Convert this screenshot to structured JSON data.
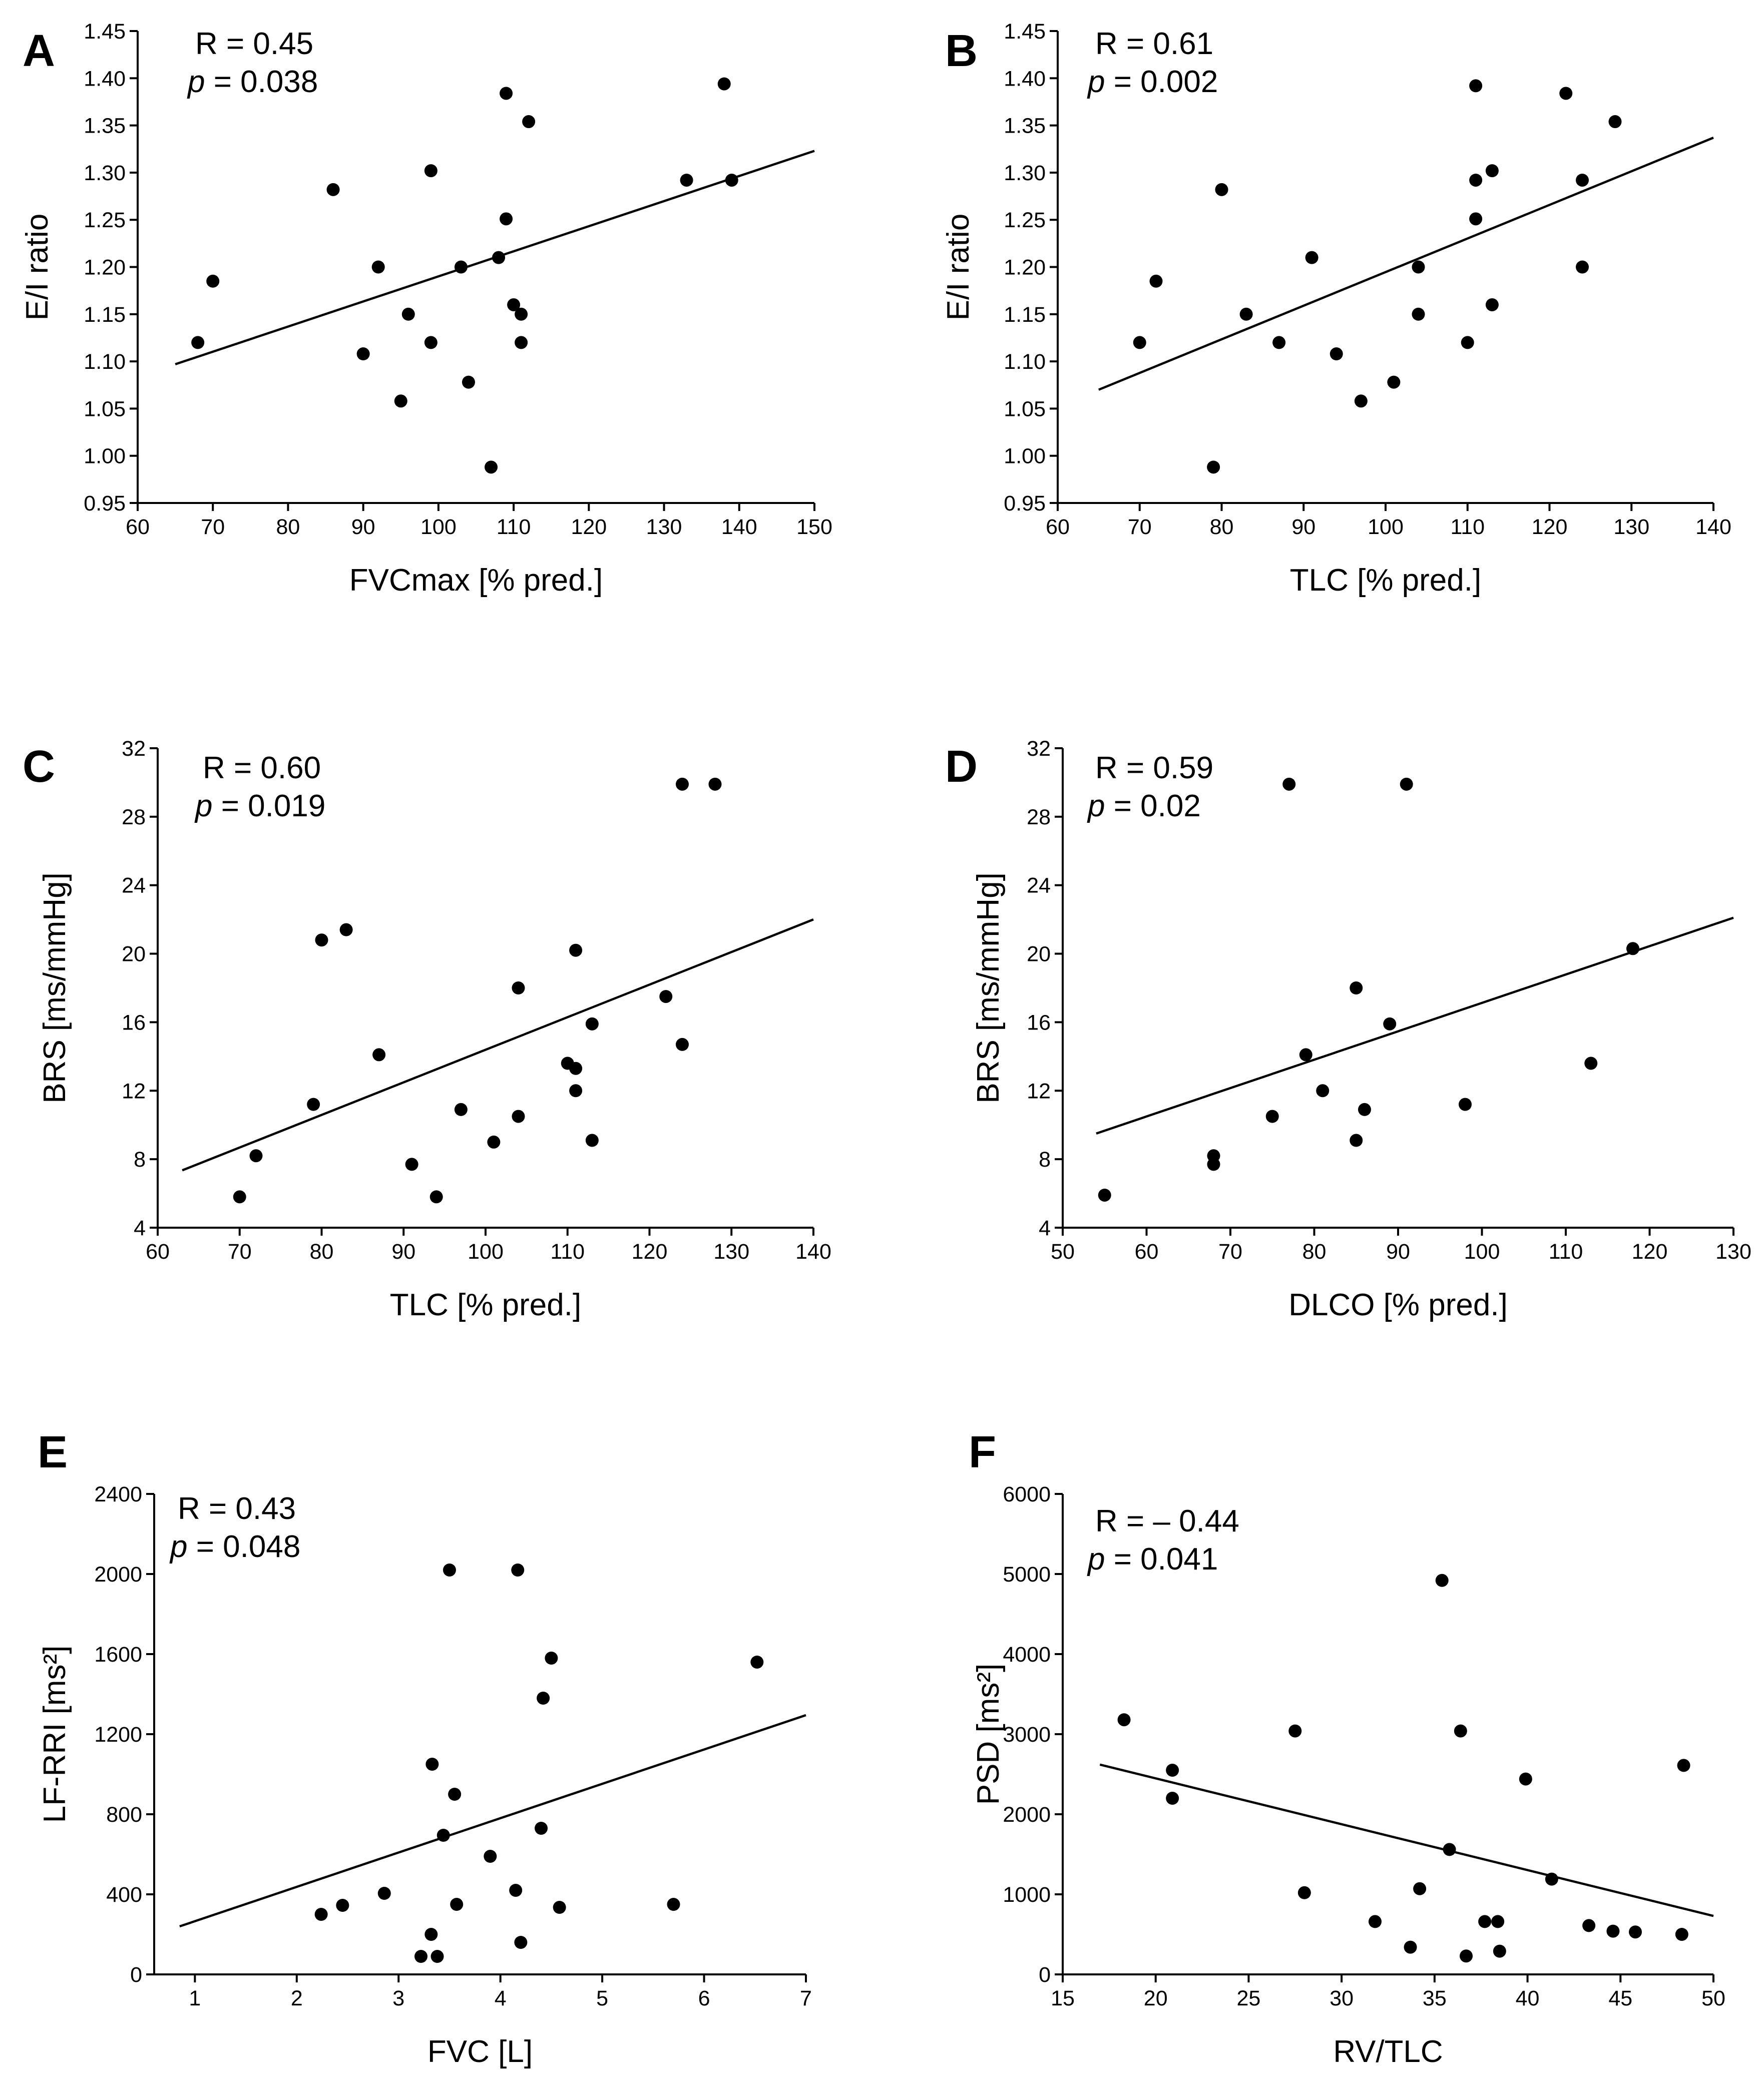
{
  "chart_data": [
    {
      "type": "scatter",
      "panel_label": "A",
      "xlabel": "FVCmax [% pred.]",
      "ylabel": "E/I ratio",
      "xlim": [
        60,
        150
      ],
      "ylim": [
        0.95,
        1.45
      ],
      "xticks": [
        60,
        70,
        80,
        90,
        100,
        110,
        120,
        130,
        140,
        150
      ],
      "yticks": [
        0.95,
        1.0,
        1.05,
        1.1,
        1.15,
        1.2,
        1.25,
        1.3,
        1.35,
        1.4,
        1.45
      ],
      "ytick_decimals": 2,
      "annotation": {
        "r_text": "R = 0.45",
        "p_letter": "p",
        "p_value": " = 0.038"
      },
      "fit_line": {
        "x": [
          65,
          150
        ],
        "y": [
          1.097,
          1.323
        ]
      },
      "points": [
        {
          "x": 68,
          "y": 1.12
        },
        {
          "x": 70,
          "y": 1.185
        },
        {
          "x": 86,
          "y": 1.282
        },
        {
          "x": 90,
          "y": 1.108
        },
        {
          "x": 92,
          "y": 1.2
        },
        {
          "x": 95,
          "y": 1.058
        },
        {
          "x": 96,
          "y": 1.15
        },
        {
          "x": 99,
          "y": 1.302
        },
        {
          "x": 99,
          "y": 1.12
        },
        {
          "x": 103,
          "y": 1.2
        },
        {
          "x": 104,
          "y": 1.078
        },
        {
          "x": 107,
          "y": 0.988
        },
        {
          "x": 108,
          "y": 1.21
        },
        {
          "x": 109,
          "y": 1.384
        },
        {
          "x": 109,
          "y": 1.251
        },
        {
          "x": 110,
          "y": 1.16
        },
        {
          "x": 111,
          "y": 1.15
        },
        {
          "x": 111,
          "y": 1.12
        },
        {
          "x": 112,
          "y": 1.354
        },
        {
          "x": 133,
          "y": 1.292
        },
        {
          "x": 138,
          "y": 1.394
        },
        {
          "x": 139,
          "y": 1.292
        }
      ]
    },
    {
      "type": "scatter",
      "panel_label": "B",
      "xlabel": "TLC [% pred.]",
      "ylabel": "E/I ratio",
      "xlim": [
        60,
        140
      ],
      "ylim": [
        0.95,
        1.45
      ],
      "xticks": [
        60,
        70,
        80,
        90,
        100,
        110,
        120,
        130,
        140
      ],
      "yticks": [
        0.95,
        1.0,
        1.05,
        1.1,
        1.15,
        1.2,
        1.25,
        1.3,
        1.35,
        1.4,
        1.45
      ],
      "ytick_decimals": 2,
      "annotation": {
        "r_text": "R = 0.61",
        "p_letter": "p",
        "p_value": " = 0.002"
      },
      "fit_line": {
        "x": [
          65,
          140
        ],
        "y": [
          1.07,
          1.337
        ]
      },
      "points": [
        {
          "x": 70,
          "y": 1.12
        },
        {
          "x": 72,
          "y": 1.185
        },
        {
          "x": 79,
          "y": 0.988
        },
        {
          "x": 80,
          "y": 1.282
        },
        {
          "x": 83,
          "y": 1.15
        },
        {
          "x": 87,
          "y": 1.12
        },
        {
          "x": 91,
          "y": 1.21
        },
        {
          "x": 94,
          "y": 1.108
        },
        {
          "x": 97,
          "y": 1.058
        },
        {
          "x": 101,
          "y": 1.078
        },
        {
          "x": 104,
          "y": 1.2
        },
        {
          "x": 104,
          "y": 1.15
        },
        {
          "x": 110,
          "y": 1.12
        },
        {
          "x": 111,
          "y": 1.392
        },
        {
          "x": 111,
          "y": 1.292
        },
        {
          "x": 111,
          "y": 1.251
        },
        {
          "x": 113,
          "y": 1.302
        },
        {
          "x": 113,
          "y": 1.16
        },
        {
          "x": 122,
          "y": 1.384
        },
        {
          "x": 124,
          "y": 1.292
        },
        {
          "x": 124,
          "y": 1.2
        },
        {
          "x": 128,
          "y": 1.354
        }
      ]
    },
    {
      "type": "scatter",
      "panel_label": "C",
      "xlabel": "TLC [% pred.]",
      "ylabel": "BRS [ms/mmHg]",
      "xlim": [
        60,
        140
      ],
      "ylim": [
        4,
        32
      ],
      "xticks": [
        60,
        70,
        80,
        90,
        100,
        110,
        120,
        130,
        140
      ],
      "yticks": [
        4,
        8,
        12,
        16,
        20,
        24,
        28,
        32
      ],
      "ytick_decimals": 0,
      "annotation": {
        "r_text": "R = 0.60",
        "p_letter": "p",
        "p_value": " = 0.019"
      },
      "fit_line": {
        "x": [
          63,
          140
        ],
        "y": [
          7.35,
          22.0
        ]
      },
      "points": [
        {
          "x": 70,
          "y": 5.8
        },
        {
          "x": 72,
          "y": 8.2
        },
        {
          "x": 79,
          "y": 11.2
        },
        {
          "x": 80,
          "y": 20.8
        },
        {
          "x": 83,
          "y": 21.4
        },
        {
          "x": 87,
          "y": 14.1
        },
        {
          "x": 91,
          "y": 7.7
        },
        {
          "x": 94,
          "y": 5.8
        },
        {
          "x": 97,
          "y": 10.9
        },
        {
          "x": 101,
          "y": 9.0
        },
        {
          "x": 104,
          "y": 18.0
        },
        {
          "x": 104,
          "y": 10.5
        },
        {
          "x": 110,
          "y": 13.6
        },
        {
          "x": 111,
          "y": 20.2
        },
        {
          "x": 111,
          "y": 13.3
        },
        {
          "x": 111,
          "y": 12.0
        },
        {
          "x": 113,
          "y": 15.9
        },
        {
          "x": 113,
          "y": 9.1
        },
        {
          "x": 122,
          "y": 17.5
        },
        {
          "x": 124,
          "y": 29.9
        },
        {
          "x": 124,
          "y": 14.7
        },
        {
          "x": 128,
          "y": 29.9
        }
      ]
    },
    {
      "type": "scatter",
      "panel_label": "D",
      "xlabel": "DLCO [% pred.]",
      "ylabel": "BRS [ms/mmHg]",
      "xlim": [
        50,
        130
      ],
      "ylim": [
        4,
        32
      ],
      "xticks": [
        50,
        60,
        70,
        80,
        90,
        100,
        110,
        120,
        130
      ],
      "yticks": [
        4,
        8,
        12,
        16,
        20,
        24,
        28,
        32
      ],
      "ytick_decimals": 0,
      "annotation": {
        "r_text": "R = 0.59",
        "p_letter": "p",
        "p_value": " = 0.02"
      },
      "fit_line": {
        "x": [
          54,
          130
        ],
        "y": [
          9.5,
          22.1
        ]
      },
      "points": [
        {
          "x": 55,
          "y": 5.9
        },
        {
          "x": 68,
          "y": 8.2
        },
        {
          "x": 68,
          "y": 7.7
        },
        {
          "x": 75,
          "y": 10.5
        },
        {
          "x": 77,
          "y": 29.9
        },
        {
          "x": 79,
          "y": 14.1
        },
        {
          "x": 81,
          "y": 12.0
        },
        {
          "x": 85,
          "y": 18.0
        },
        {
          "x": 85,
          "y": 9.1
        },
        {
          "x": 86,
          "y": 10.9
        },
        {
          "x": 89,
          "y": 15.9
        },
        {
          "x": 91,
          "y": 29.9
        },
        {
          "x": 98,
          "y": 11.2
        },
        {
          "x": 113,
          "y": 13.6
        },
        {
          "x": 118,
          "y": 20.3
        }
      ]
    },
    {
      "type": "scatter",
      "panel_label": "E",
      "xlabel": "FVC [L]",
      "ylabel": "LF-RRI [ms²]",
      "xlim": [
        0.6,
        7
      ],
      "ylim": [
        0,
        2400
      ],
      "xticks": [
        1,
        2,
        3,
        4,
        5,
        6,
        7
      ],
      "yticks": [
        0,
        400,
        800,
        1200,
        1600,
        2000,
        2400
      ],
      "ytick_decimals": 0,
      "annotation": {
        "r_text": "R = 0.43",
        "p_letter": "p",
        "p_value": " = 0.048"
      },
      "fit_line": {
        "x": [
          0.85,
          7
        ],
        "y": [
          240,
          1295
        ]
      },
      "points": [
        {
          "x": 2.24,
          "y": 300
        },
        {
          "x": 2.45,
          "y": 345
        },
        {
          "x": 2.86,
          "y": 405
        },
        {
          "x": 3.22,
          "y": 90
        },
        {
          "x": 3.32,
          "y": 200
        },
        {
          "x": 3.33,
          "y": 1050
        },
        {
          "x": 3.38,
          "y": 90
        },
        {
          "x": 3.44,
          "y": 695
        },
        {
          "x": 3.5,
          "y": 2020
        },
        {
          "x": 3.55,
          "y": 900
        },
        {
          "x": 3.57,
          "y": 350
        },
        {
          "x": 3.9,
          "y": 590
        },
        {
          "x": 4.15,
          "y": 420
        },
        {
          "x": 4.17,
          "y": 2020
        },
        {
          "x": 4.2,
          "y": 160
        },
        {
          "x": 4.4,
          "y": 730
        },
        {
          "x": 4.42,
          "y": 1380
        },
        {
          "x": 4.5,
          "y": 1580
        },
        {
          "x": 4.58,
          "y": 335
        },
        {
          "x": 5.7,
          "y": 350
        },
        {
          "x": 6.52,
          "y": 1560
        }
      ]
    },
    {
      "type": "scatter",
      "panel_label": "F",
      "xlabel": "RV/TLC",
      "ylabel": "PSD [ms²]",
      "xlim": [
        15,
        50
      ],
      "ylim": [
        0,
        6000
      ],
      "xticks": [
        15,
        20,
        25,
        30,
        35,
        40,
        45,
        50
      ],
      "yticks": [
        0,
        1000,
        2000,
        3000,
        4000,
        5000,
        6000
      ],
      "ytick_decimals": 0,
      "annotation": {
        "r_text": "R = – 0.44",
        "p_letter": "p",
        "p_value": " = 0.041"
      },
      "fit_line": {
        "x": [
          17,
          50
        ],
        "y": [
          2620,
          730
        ]
      },
      "points": [
        {
          "x": 18.3,
          "y": 3180
        },
        {
          "x": 20.9,
          "y": 2550
        },
        {
          "x": 20.9,
          "y": 2200
        },
        {
          "x": 27.5,
          "y": 3040
        },
        {
          "x": 28.0,
          "y": 1020
        },
        {
          "x": 31.8,
          "y": 660
        },
        {
          "x": 33.7,
          "y": 340
        },
        {
          "x": 34.2,
          "y": 1070
        },
        {
          "x": 35.4,
          "y": 4920
        },
        {
          "x": 35.8,
          "y": 1560
        },
        {
          "x": 36.4,
          "y": 3040
        },
        {
          "x": 36.7,
          "y": 230
        },
        {
          "x": 37.7,
          "y": 660
        },
        {
          "x": 38.4,
          "y": 660
        },
        {
          "x": 38.5,
          "y": 290
        },
        {
          "x": 39.9,
          "y": 2440
        },
        {
          "x": 41.3,
          "y": 1190
        },
        {
          "x": 43.3,
          "y": 610
        },
        {
          "x": 44.6,
          "y": 540
        },
        {
          "x": 45.8,
          "y": 530
        },
        {
          "x": 48.3,
          "y": 500
        },
        {
          "x": 48.4,
          "y": 2610
        }
      ]
    }
  ]
}
